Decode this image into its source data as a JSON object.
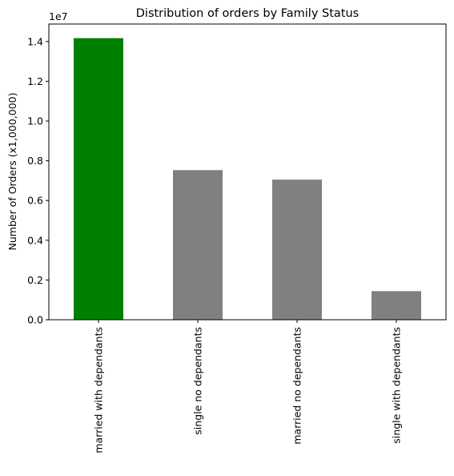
{
  "chart_data": {
    "type": "bar",
    "title": "Distribution of orders by Family Status",
    "xlabel": "",
    "ylabel": "Number of Orders (x1,000,000)",
    "offset_text": "1e7",
    "categories": [
      "married with dependants",
      "single no dependants",
      "married no dependants",
      "single with dependants"
    ],
    "values": [
      14170000,
      7530000,
      7050000,
      1440000
    ],
    "bar_colors": [
      "#008000",
      "#808080",
      "#808080",
      "#808080"
    ],
    "ylim": [
      0,
      14880000
    ],
    "yticks": [
      0,
      2000000,
      4000000,
      6000000,
      8000000,
      10000000,
      12000000,
      14000000
    ],
    "ytick_labels": [
      "0.0",
      "0.2",
      "0.4",
      "0.6",
      "0.8",
      "1.0",
      "1.2",
      "1.4"
    ],
    "grid": false,
    "legend": "none"
  }
}
